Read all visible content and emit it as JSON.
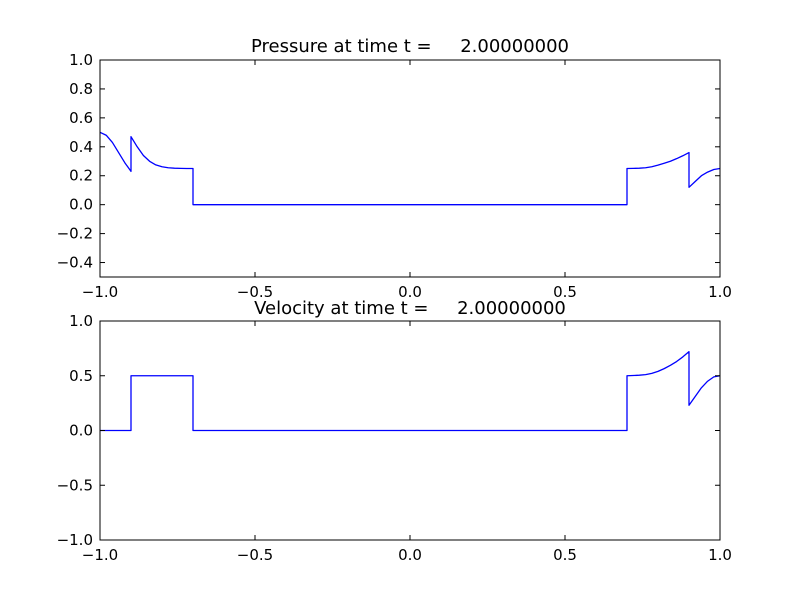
{
  "figure": {
    "background": "#ffffff"
  },
  "chart_data": [
    {
      "type": "line",
      "title": "Pressure at time t =     2.00000000",
      "xlabel": "",
      "ylabel": "",
      "xlim": [
        -1.0,
        1.0
      ],
      "ylim": [
        -0.5,
        1.0
      ],
      "xticks": [
        -1.0,
        -0.5,
        0.0,
        0.5,
        1.0
      ],
      "xtick_labels": [
        "−1.0",
        "−0.5",
        "0.0",
        "0.5",
        "1.0"
      ],
      "yticks": [
        -0.4,
        -0.2,
        0.0,
        0.2,
        0.4,
        0.6,
        0.8,
        1.0
      ],
      "ytick_labels": [
        "−0.4",
        "−0.2",
        "0.0",
        "0.2",
        "0.4",
        "0.6",
        "0.8",
        "1.0"
      ],
      "grid": false,
      "series": [
        {
          "color": "#0000ff",
          "x": [
            -1.0,
            -0.98,
            -0.96,
            -0.94,
            -0.92,
            -0.9,
            -0.9,
            -0.88,
            -0.86,
            -0.84,
            -0.82,
            -0.8,
            -0.78,
            -0.76,
            -0.74,
            -0.72,
            -0.7,
            -0.7,
            0.7,
            0.7,
            0.72,
            0.74,
            0.76,
            0.78,
            0.8,
            0.82,
            0.84,
            0.86,
            0.88,
            0.9,
            0.9,
            0.92,
            0.94,
            0.96,
            0.98,
            1.0
          ],
          "y": [
            0.5,
            0.48,
            0.43,
            0.36,
            0.29,
            0.23,
            0.47,
            0.4,
            0.34,
            0.3,
            0.275,
            0.262,
            0.255,
            0.252,
            0.251,
            0.25,
            0.25,
            0.0,
            0.0,
            0.25,
            0.251,
            0.252,
            0.255,
            0.262,
            0.273,
            0.286,
            0.3,
            0.318,
            0.338,
            0.36,
            0.12,
            0.16,
            0.2,
            0.225,
            0.243,
            0.25
          ]
        }
      ]
    },
    {
      "type": "line",
      "title": "Velocity at time t =     2.00000000",
      "xlabel": "",
      "ylabel": "",
      "xlim": [
        -1.0,
        1.0
      ],
      "ylim": [
        -1.0,
        1.0
      ],
      "xticks": [
        -1.0,
        -0.5,
        0.0,
        0.5,
        1.0
      ],
      "xtick_labels": [
        "−1.0",
        "−0.5",
        "0.0",
        "0.5",
        "1.0"
      ],
      "yticks": [
        -1.0,
        -0.5,
        0.0,
        0.5,
        1.0
      ],
      "ytick_labels": [
        "−1.0",
        "−0.5",
        "0.0",
        "0.5",
        "1.0"
      ],
      "grid": false,
      "series": [
        {
          "color": "#0000ff",
          "x": [
            -1.0,
            -0.9,
            -0.9,
            -0.7,
            -0.7,
            0.7,
            0.7,
            0.72,
            0.74,
            0.76,
            0.78,
            0.8,
            0.82,
            0.84,
            0.86,
            0.88,
            0.9,
            0.9,
            0.92,
            0.94,
            0.96,
            0.98,
            1.0
          ],
          "y": [
            0.0,
            0.0,
            0.5,
            0.5,
            0.0,
            0.0,
            0.5,
            0.502,
            0.505,
            0.51,
            0.522,
            0.54,
            0.565,
            0.595,
            0.63,
            0.672,
            0.72,
            0.23,
            0.31,
            0.39,
            0.45,
            0.49,
            0.5
          ]
        }
      ]
    }
  ]
}
